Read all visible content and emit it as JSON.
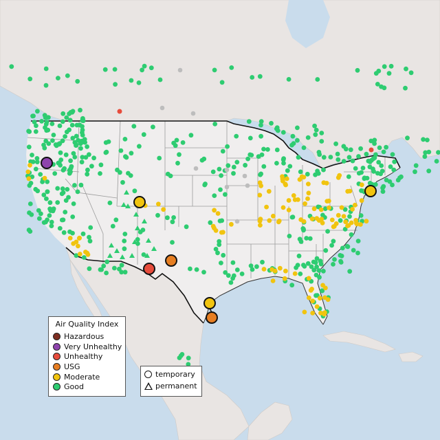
{
  "colors": {
    "ocean": "#c9dcec",
    "land_us": "#f0eeee",
    "land_other": "#e9e5e3",
    "state_line": "#9b9b9b",
    "border": "#111111",
    "no_data": "#bdbdbd"
  },
  "legend": {
    "title": "Air Quality Index",
    "items": [
      {
        "label": "Hazardous",
        "color": "#7e2f22"
      },
      {
        "label": "Very Unhealthy",
        "color": "#8e44ad"
      },
      {
        "label": "Unhealthy",
        "color": "#e74c3c"
      },
      {
        "label": "USG",
        "color": "#e67e22"
      },
      {
        "label": "Moderate",
        "color": "#f1c40f"
      },
      {
        "label": "Good",
        "color": "#2ecc71"
      }
    ]
  },
  "monitor_legend": {
    "items": [
      {
        "label": "temporary",
        "icon": "circle-icon"
      },
      {
        "label": "permanent",
        "icon": "triangle-icon"
      }
    ]
  },
  "highlighted_sites": [
    {
      "category": "Very Unhealthy",
      "lon": -123.1,
      "lat": 44.0
    },
    {
      "category": "Moderate",
      "lon": -106.6,
      "lat": 40.6
    },
    {
      "category": "Unhealthy",
      "lon": -106.4,
      "lat": 31.8
    },
    {
      "category": "USG",
      "lon": -101.8,
      "lat": 32.0
    },
    {
      "category": "Moderate",
      "lon": -95.4,
      "lat": 29.8
    },
    {
      "category": "USG",
      "lon": -95.3,
      "lat": 28.7
    },
    {
      "category": "Moderate",
      "lon": -76.5,
      "lat": 39.3
    }
  ],
  "minor_sites": [
    {
      "category": "Unhealthy",
      "lon": -112.0,
      "lat": 56.3
    },
    {
      "category": "Unhealthy",
      "lon": -74.0,
      "lat": 45.8
    }
  ]
}
